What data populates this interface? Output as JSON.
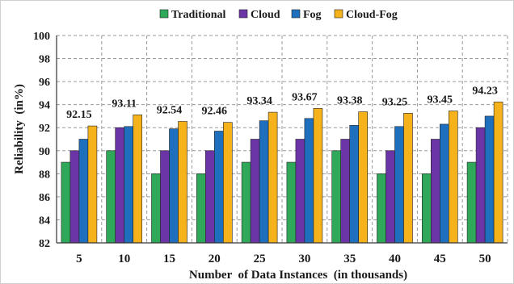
{
  "chart_data": {
    "type": "bar",
    "title": "",
    "xlabel": "Number  of Data Instances  (in thousands)",
    "ylabel": "Reliability  (in%)",
    "ylim": [
      82,
      100
    ],
    "yticks": [
      82,
      84,
      86,
      88,
      90,
      92,
      94,
      96,
      98,
      100
    ],
    "grid": true,
    "legend_position": "top",
    "categories": [
      "5",
      "10",
      "15",
      "20",
      "25",
      "30",
      "35",
      "40",
      "45",
      "50"
    ],
    "series": [
      {
        "name": "Traditional",
        "color": "#2fa85a",
        "values": [
          89,
          90,
          88,
          88,
          89,
          89,
          90,
          88,
          88,
          89
        ]
      },
      {
        "name": "Cloud",
        "color": "#6b35a8",
        "values": [
          90,
          92,
          90,
          90,
          91,
          91,
          91,
          90,
          91,
          92
        ]
      },
      {
        "name": "Fog",
        "color": "#1f6fbf",
        "values": [
          91,
          92.1,
          91.9,
          91.7,
          92.6,
          92.8,
          92.2,
          92.1,
          92.3,
          93
        ]
      },
      {
        "name": "Cloud-Fog",
        "color": "#f5b21b",
        "values": [
          92.15,
          93.11,
          92.54,
          92.46,
          93.34,
          93.67,
          93.38,
          93.25,
          93.45,
          94.23
        ]
      }
    ],
    "data_labels": [
      "92.15",
      "93.11",
      "92.54",
      "92.46",
      "93.34",
      "93.67",
      "93.38",
      "93.25",
      "93.45",
      "94.23"
    ]
  }
}
